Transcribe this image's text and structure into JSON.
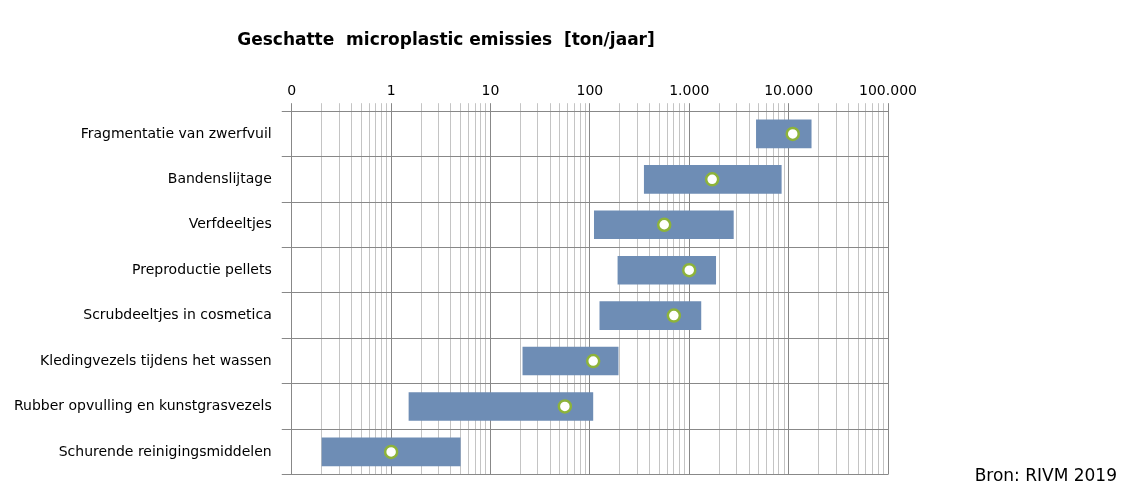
{
  "chart_data": {
    "type": "bar",
    "orientation": "horizontal",
    "title": "Geschatte  microplastic emissies  [ton/jaar]",
    "categories": [
      "Fragmentatie van zwerfvuil",
      "Bandenslijtage",
      "Verfdeeltjes",
      "Preproductie pellets",
      "Scrubdeeltjes in cosmetica",
      "Kledingvezels tijdens het wassen",
      "Rubber opvulling en kunstgrasvezels",
      "Schurende reinigingsmiddelen"
    ],
    "series": [
      {
        "color": "#6e8db5",
        "base": [
          4700,
          350,
          110,
          190,
          125,
          21,
          1.5,
          0.2
        ],
        "values": [
          12300,
          8150,
          2690,
          1670,
          1195,
          173,
          106.5,
          4.8
        ]
      },
      {
        "type": "scatter",
        "color": "#8db33a",
        "values": [
          11000,
          1700,
          560,
          1000,
          700,
          108,
          56,
          1
        ]
      }
    ],
    "log": "x",
    "xlim": [
      0.1,
      100000
    ],
    "xticks": [
      {
        "value": 0.1,
        "label": "0"
      },
      1,
      10,
      100,
      {
        "value": 1000,
        "label": "1.000"
      },
      {
        "value": 10000,
        "label": "10.000"
      },
      {
        "value": 100000,
        "label": "100.000"
      },
      {
        "value": 0.2,
        "label": null
      },
      {
        "value": 0.3,
        "label": null
      },
      {
        "value": 0.4,
        "label": null
      },
      {
        "value": 0.5,
        "label": null
      },
      {
        "value": 0.6,
        "label": null
      },
      {
        "value": 0.7,
        "label": null
      },
      {
        "value": 0.8,
        "label": null
      },
      {
        "value": 0.9,
        "label": null
      },
      {
        "value": 2,
        "label": null
      },
      {
        "value": 3,
        "label": null
      },
      {
        "value": 4,
        "label": null
      },
      {
        "value": 5,
        "label": null
      },
      {
        "value": 6,
        "label": null
      },
      {
        "value": 7,
        "label": null
      },
      {
        "value": 8,
        "label": null
      },
      {
        "value": 9,
        "label": null
      },
      {
        "value": 20,
        "label": null
      },
      {
        "value": 30,
        "label": null
      },
      {
        "value": 40,
        "label": null
      },
      {
        "value": 50,
        "label": null
      },
      {
        "value": 60,
        "label": null
      },
      {
        "value": 70,
        "label": null
      },
      {
        "value": 80,
        "label": null
      },
      {
        "value": 90,
        "label": null
      },
      {
        "value": 200,
        "label": null
      },
      {
        "value": 300,
        "label": null
      },
      {
        "value": 400,
        "label": null
      },
      {
        "value": 500,
        "label": null
      },
      {
        "value": 600,
        "label": null
      },
      {
        "value": 700,
        "label": null
      },
      {
        "value": 800,
        "label": null
      },
      {
        "value": 900,
        "label": null
      },
      {
        "value": 2000,
        "label": null
      },
      {
        "value": 3000,
        "label": null
      },
      {
        "value": 4000,
        "label": null
      },
      {
        "value": 5000,
        "label": null
      },
      {
        "value": 6000,
        "label": null
      },
      {
        "value": 7000,
        "label": null
      },
      {
        "value": 8000,
        "label": null
      },
      {
        "value": 9000,
        "label": null
      },
      {
        "value": 20000,
        "label": null
      },
      {
        "value": 30000,
        "label": null
      },
      {
        "value": 40000,
        "label": null
      },
      {
        "value": 50000,
        "label": null
      },
      {
        "value": 60000,
        "label": null
      },
      {
        "value": 70000,
        "label": null
      },
      {
        "value": 80000,
        "label": null
      },
      {
        "value": 90000,
        "label": null
      }
    ],
    "grid": true,
    "marker": "circle",
    "legend": false,
    "annotations": [
      "Bron: RIVM 2019"
    ]
  }
}
